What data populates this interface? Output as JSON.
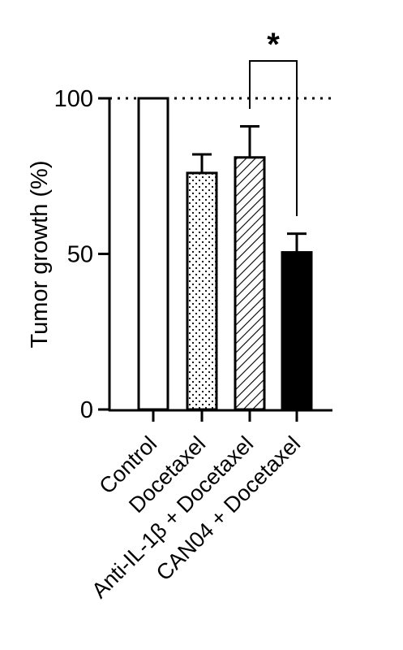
{
  "chart_data": {
    "type": "bar",
    "title": "",
    "xlabel": "",
    "ylabel": "Tumor growth (%)",
    "ylim": [
      0,
      100
    ],
    "yticks": [
      0,
      50,
      100
    ],
    "grid": false,
    "reference_line": {
      "value": 100,
      "style": "dotted"
    },
    "categories": [
      "Control",
      "Docetaxel",
      "Anti-IL-1β + Docetaxel",
      "CAN04 + Docetaxel"
    ],
    "values": [
      100,
      76,
      81,
      50.5
    ],
    "error_upper": [
      0,
      6,
      10,
      6
    ],
    "patterns": [
      "none",
      "dots",
      "hatch",
      "solid"
    ],
    "bar_fills": [
      "#ffffff",
      "#ffffff",
      "#ffffff",
      "#000000"
    ],
    "significance": {
      "from": 2,
      "to": 3,
      "label": "*"
    }
  }
}
